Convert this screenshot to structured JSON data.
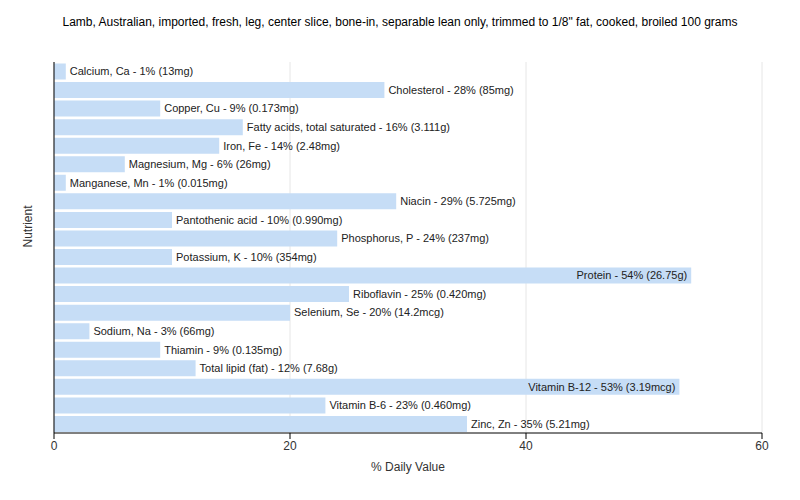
{
  "chart_data": {
    "type": "bar",
    "title": "Lamb, Australian, imported, fresh, leg, center slice, bone-in, separable lean only, trimmed to 1/8\" fat, cooked, broiled 100 grams",
    "x_label": "% Daily Value",
    "y_label": "Nutrient",
    "orientation": "horizontal",
    "categories": [
      null,
      null,
      null,
      null,
      null,
      null,
      null,
      null,
      null,
      null,
      null,
      null,
      null,
      null,
      null,
      null,
      null,
      null,
      null,
      null
    ],
    "values": [
      1,
      28,
      9,
      16,
      14,
      6,
      1,
      29,
      10,
      24,
      10,
      54,
      25,
      20,
      3,
      9,
      12,
      53,
      23,
      35
    ],
    "value_labels": [
      "Calcium, Ca - 1% (13mg)",
      "Cholesterol - 28% (85mg)",
      "Copper, Cu - 9% (0.173mg)",
      "Fatty acids, total saturated - 16% (3.111g)",
      "Iron, Fe - 14% (2.48mg)",
      "Magnesium, Mg - 6% (26mg)",
      "Manganese, Mn - 1% (0.015mg)",
      "Niacin - 29% (5.725mg)",
      "Pantothenic acid - 10% (0.990mg)",
      "Phosphorus, P - 24% (237mg)",
      "Potassium, K - 10% (354mg)",
      "Protein - 54% (26.75g)",
      "Riboflavin - 25% (0.420mg)",
      "Selenium, Se - 20% (14.2mcg)",
      "Sodium, Na - 3% (66mg)",
      "Thiamin - 9% (0.135mg)",
      "Total lipid (fat) - 12% (7.68g)",
      "Vitamin B-12 - 53% (3.19mcg)",
      "Vitamin B-6 - 23% (0.460mg)",
      "Zinc, Zn - 35% (5.21mg)"
    ],
    "data_labels": true,
    "color": "#c6ddf6",
    "xlim": [
      0,
      60
    ],
    "xticks": [
      0,
      20,
      40,
      60
    ],
    "grid": true,
    "tick_labels": "x"
  }
}
